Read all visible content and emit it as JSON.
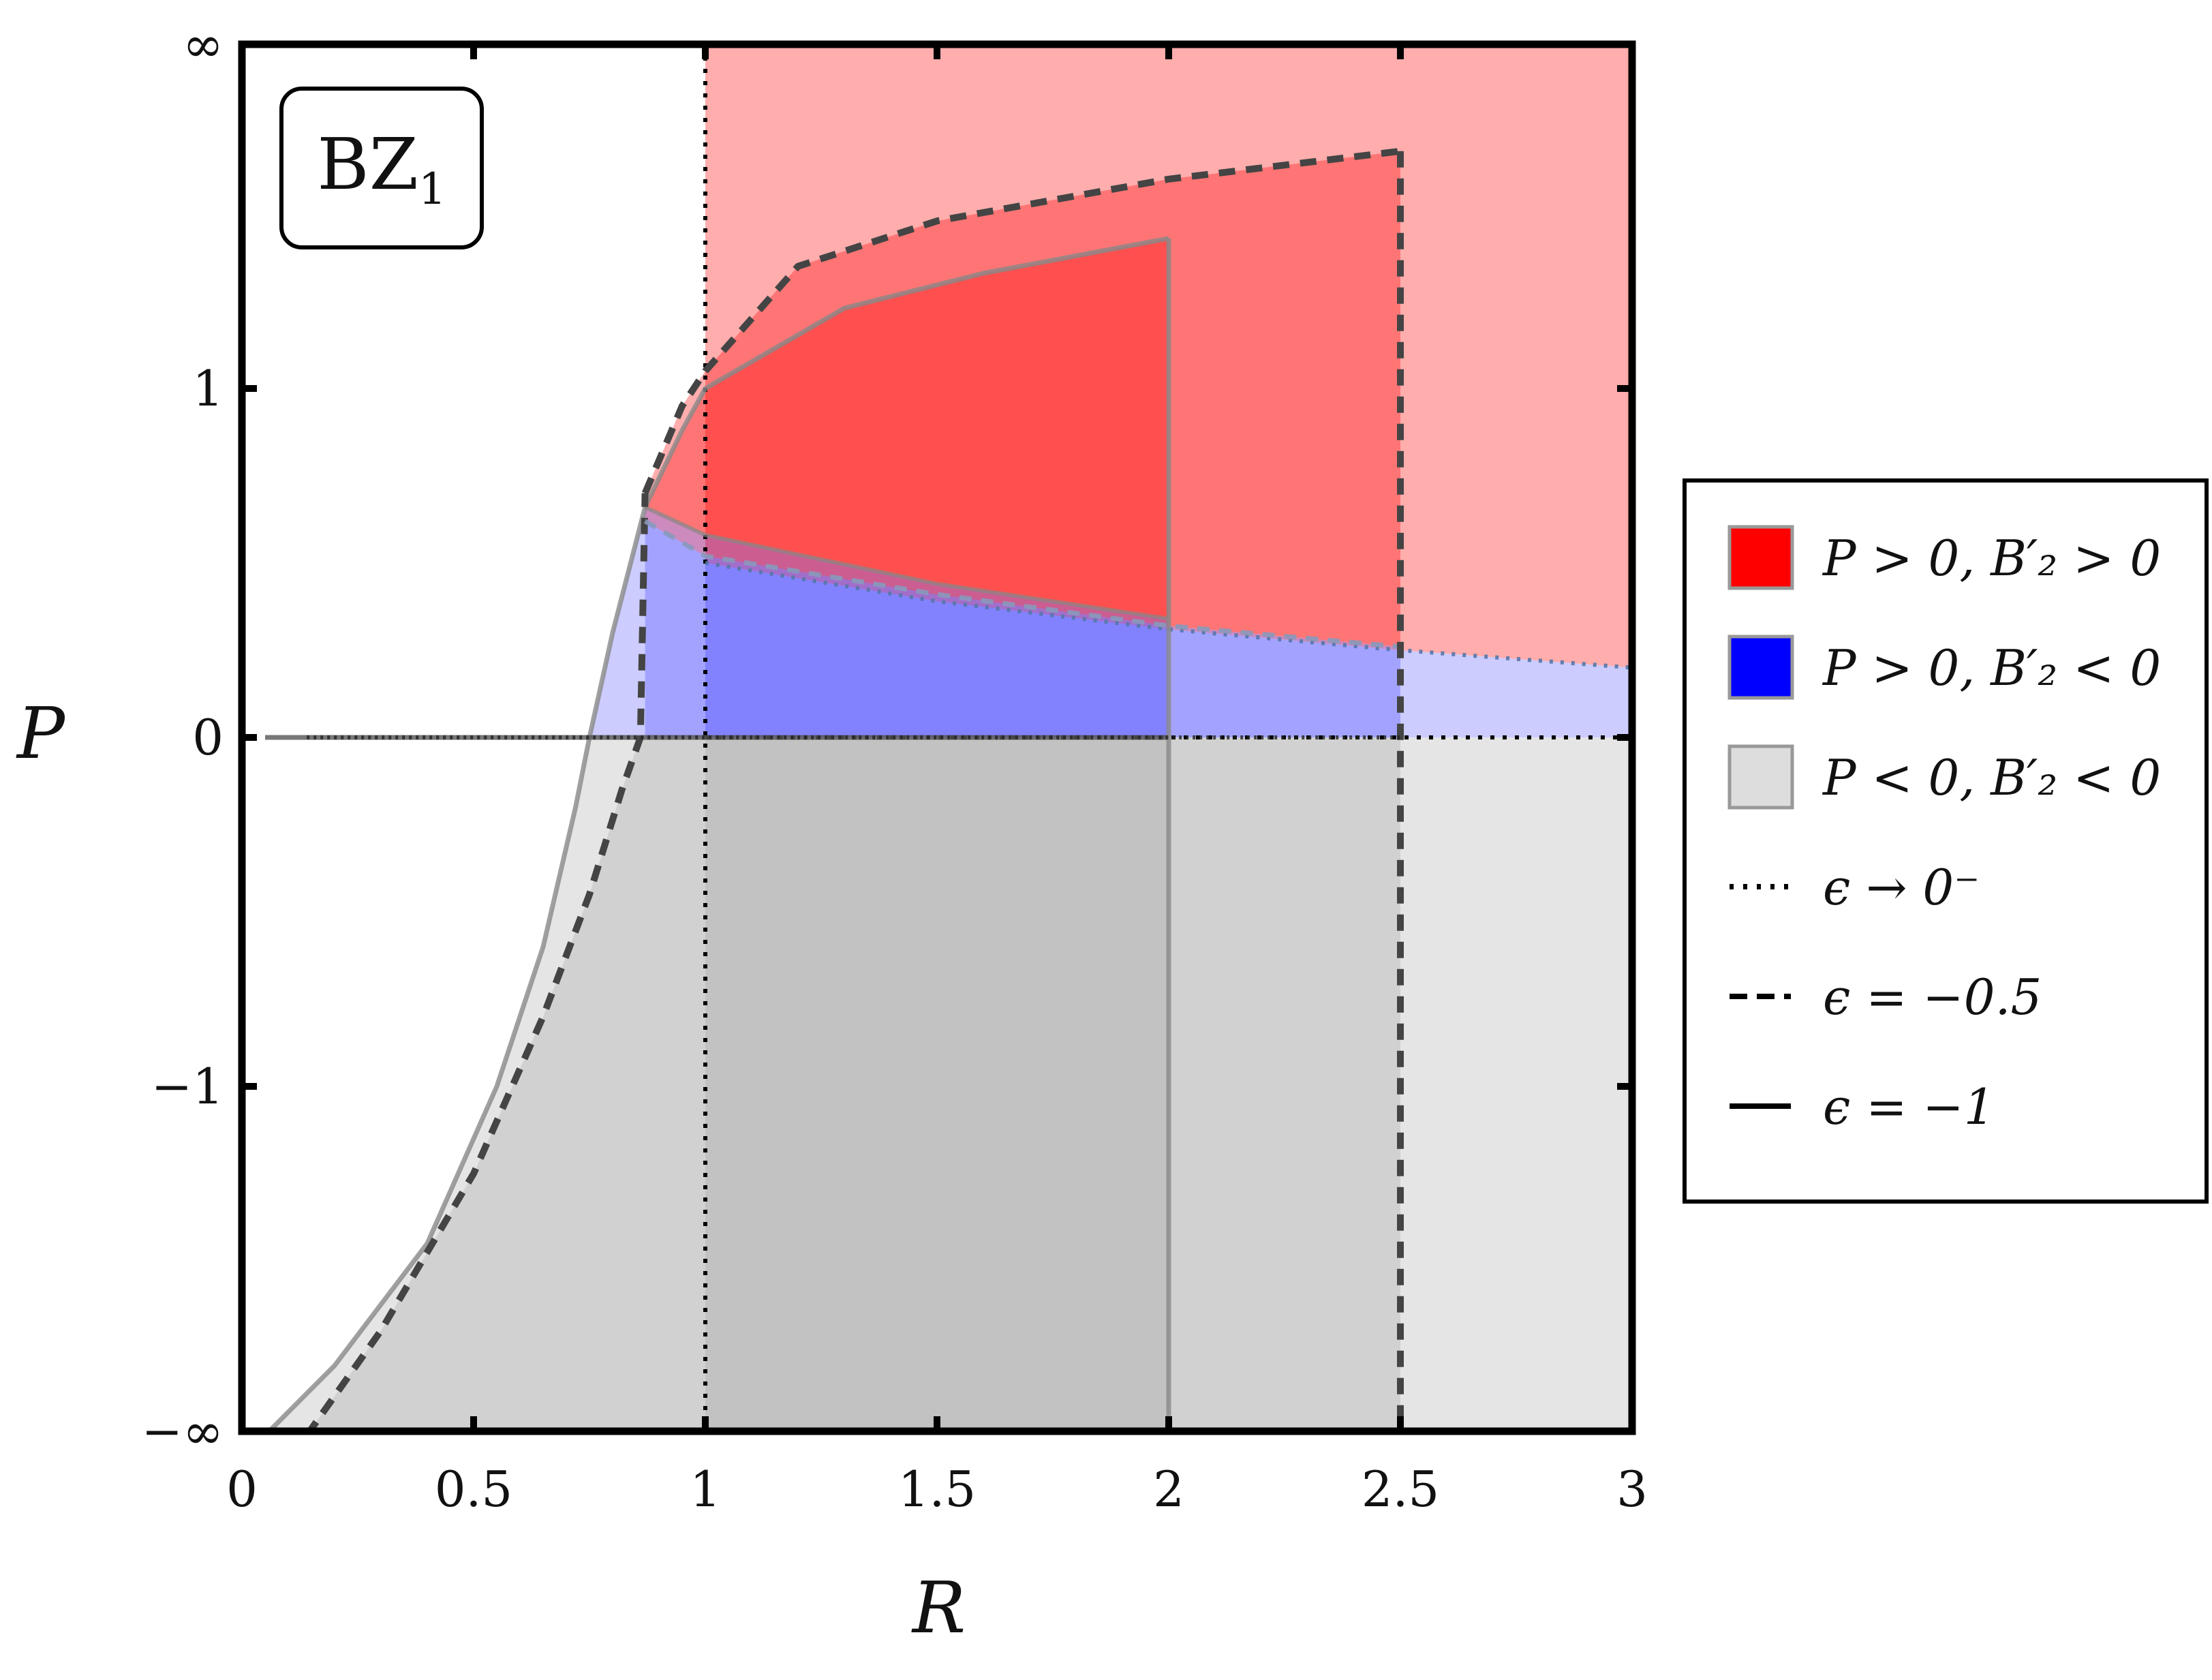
{
  "chart_data": {
    "type": "area",
    "badge": {
      "main": "BZ",
      "sub": "1"
    },
    "xlabel": "R",
    "ylabel": "P",
    "xlim": [
      0,
      3
    ],
    "ylim": [
      "−∞",
      "∞"
    ],
    "x_ticks": [
      {
        "value": 0,
        "label": "0"
      },
      {
        "value": 0.5,
        "label": "0.5"
      },
      {
        "value": 1,
        "label": "1"
      },
      {
        "value": 1.5,
        "label": "1.5"
      },
      {
        "value": 2,
        "label": "2"
      },
      {
        "value": 2.5,
        "label": "2.5"
      },
      {
        "value": 3,
        "label": "3"
      }
    ],
    "y_ticks": [
      {
        "value": "−∞",
        "label": "−∞"
      },
      {
        "value": -1,
        "label": "−1"
      },
      {
        "value": 0,
        "label": "0"
      },
      {
        "value": 1,
        "label": "1"
      },
      {
        "value": "∞",
        "label": "∞"
      }
    ],
    "legend": {
      "placement": "right",
      "items": [
        {
          "kind": "swatch",
          "color": "#ff0000",
          "text": "P > 0, B′₂ > 0"
        },
        {
          "kind": "swatch",
          "color": "#0000ff",
          "text": "P > 0, B′₂ < 0"
        },
        {
          "kind": "swatch",
          "color": "#dddddd",
          "text": "P < 0, B′₂ < 0"
        },
        {
          "kind": "line",
          "dash": "dotted",
          "text": "ϵ → 0⁻"
        },
        {
          "kind": "line",
          "dash": "dashed",
          "text": "ϵ = −0.5"
        },
        {
          "kind": "line",
          "dash": "solid",
          "text": "ϵ = −1"
        }
      ]
    },
    "series": [
      {
        "name": "ϵ → 0⁻",
        "dash": "dotted",
        "R_max": "∞",
        "R_min": 1,
        "boundary_B2_zero": {
          "R": [
            1,
            1.5,
            2,
            2.5,
            3
          ],
          "P": [
            0.5,
            0.39,
            0.31,
            0.25,
            0.2
          ]
        }
      },
      {
        "name": "ϵ = −0.5",
        "dash": "dashed",
        "R_max": 2.5,
        "upper_curve": {
          "R": [
            0.87,
            0.95,
            1,
            1.2,
            1.5,
            2,
            2.5
          ],
          "P": [
            0.7,
            0.95,
            1.05,
            1.35,
            1.48,
            1.6,
            1.68
          ]
        },
        "lower_curve": {
          "R": [
            0.14,
            0.3,
            0.5,
            0.65,
            0.75,
            0.82,
            0.86,
            0.87
          ],
          "P": [
            -2.0,
            -1.7,
            -1.25,
            -0.8,
            -0.45,
            -0.15,
            0,
            0.7
          ]
        },
        "boundary_B2_zero": {
          "R": [
            0.87,
            1,
            1.5,
            2,
            2.5
          ],
          "P": [
            0.62,
            0.52,
            0.41,
            0.32,
            0.26
          ]
        }
      },
      {
        "name": "ϵ = −1",
        "dash": "solid",
        "R_max": 2,
        "upper_curve": {
          "R": [
            0.75,
            0.8,
            0.87,
            0.95,
            1,
            1.3,
            1.6,
            2
          ],
          "P": [
            0,
            0.3,
            0.66,
            0.88,
            1.0,
            1.23,
            1.33,
            1.43
          ]
        },
        "lower_curve": {
          "R": [
            0.05,
            0.2,
            0.4,
            0.55,
            0.65,
            0.72,
            0.75
          ],
          "P": [
            -2.0,
            -1.8,
            -1.45,
            -1.0,
            -0.6,
            -0.2,
            0
          ]
        },
        "boundary_B2_zero": {
          "R": [
            0.87,
            1,
            1.5,
            2
          ],
          "P": [
            0.66,
            0.58,
            0.44,
            0.34
          ]
        }
      }
    ],
    "region_colors": {
      "P_pos_B2_pos": "#ff0000",
      "P_pos_B2_neg": "#0000ff",
      "P_neg_B2_neg": "#dddddd"
    }
  }
}
